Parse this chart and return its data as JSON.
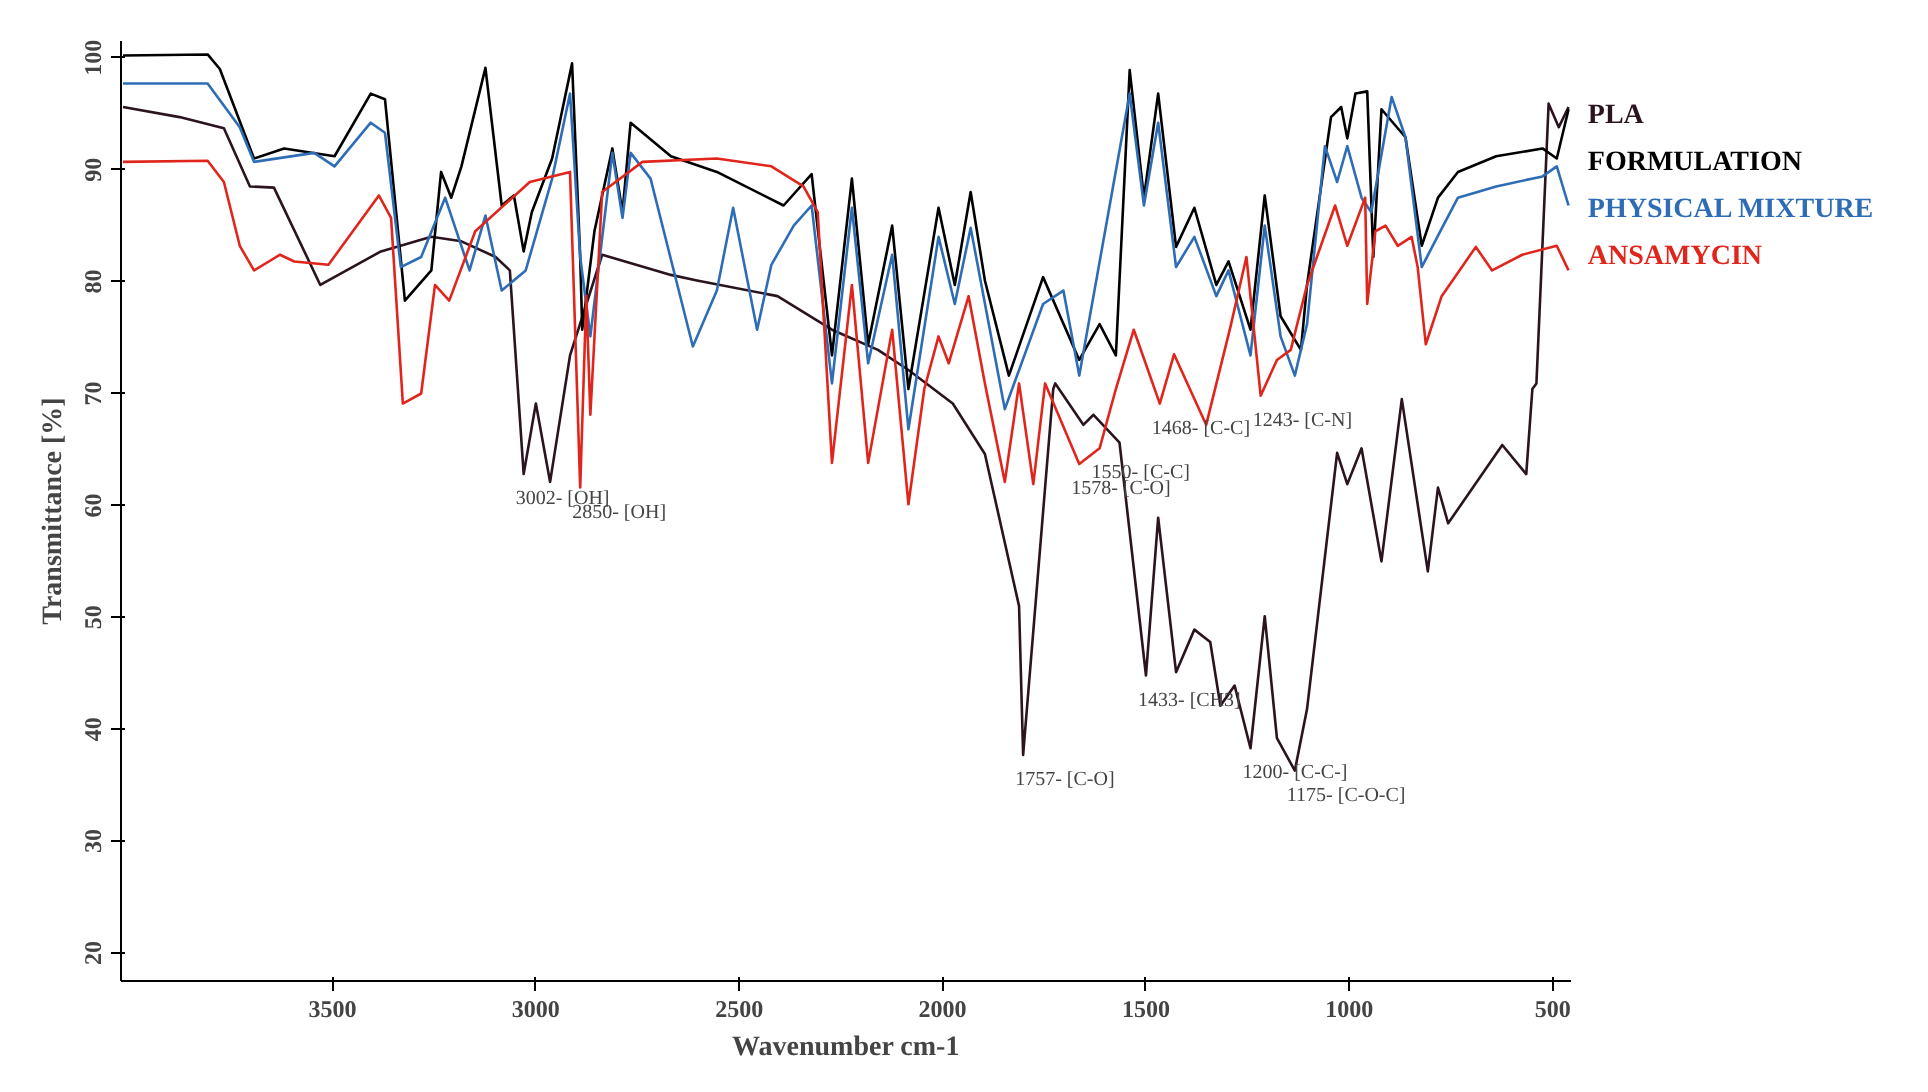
{
  "chart_data": {
    "type": "line",
    "xlabel": "Wavenumber cm-1",
    "ylabel": "Transmittance [%]",
    "xlim": [
      4020,
      455
    ],
    "xticks": [
      3500,
      3000,
      2500,
      2000,
      1500,
      1000,
      500
    ],
    "ylim": [
      17.5,
      101.5
    ],
    "yticks": [
      20,
      30,
      40,
      50,
      60,
      70,
      80,
      90,
      100
    ],
    "grid": false,
    "legend": "right",
    "line_style": "solid",
    "marker": "none",
    "series": [
      {
        "name": "PLA",
        "color": "#2b1320",
        "x": [
          4015,
          3876,
          3767,
          3703,
          3644,
          3530,
          3381,
          3257,
          3183,
          3099,
          3064,
          3030,
          3000,
          2965,
          2916,
          2837,
          2668,
          2604,
          2406,
          2272,
          2159,
          2084,
          1975,
          1896,
          1812,
          1802,
          1748,
          1728,
          1723,
          1654,
          1629,
          1565,
          1500,
          1470,
          1426,
          1381,
          1342,
          1317,
          1282,
          1243,
          1208,
          1178,
          1134,
          1104,
          1030,
          1005,
          970,
          921,
          871,
          807,
          782,
          757,
          624,
          565,
          550,
          540,
          510,
          485,
          461
        ],
        "values": [
          95.6,
          94.7,
          93.7,
          88.5,
          88.4,
          79.7,
          82.7,
          84,
          83.6,
          82.2,
          81,
          62.8,
          69.1,
          62.1,
          73.4,
          82.4,
          80.6,
          80.1,
          78.7,
          75.7,
          73.9,
          72.1,
          69.1,
          64.6,
          51,
          37.7,
          61.6,
          70.4,
          70.9,
          67.2,
          68.1,
          65.6,
          44.8,
          58.9,
          45.1,
          48.9,
          47.8,
          42.1,
          43.9,
          38.3,
          50.1,
          39.2,
          36.3,
          41.8,
          64.7,
          61.9,
          65.1,
          55,
          69.5,
          54.1,
          61.6,
          58.4,
          65.4,
          62.8,
          70.4,
          70.9,
          95.9,
          93.8,
          95.6
        ]
      },
      {
        "name": "FORMULATION",
        "color": "#000000",
        "x": [
          4015,
          3807,
          3777,
          3693,
          3619,
          3495,
          3406,
          3371,
          3322,
          3257,
          3233,
          3208,
          3183,
          3124,
          3084,
          3054,
          3030,
          3010,
          2960,
          2911,
          2891,
          2886,
          2856,
          2812,
          2787,
          2767,
          2668,
          2555,
          2391,
          2322,
          2272,
          2223,
          2183,
          2124,
          2084,
          2010,
          1970,
          1931,
          1896,
          1837,
          1753,
          1664,
          1614,
          1574,
          1540,
          1505,
          1470,
          1426,
          1381,
          1327,
          1297,
          1243,
          1208,
          1169,
          1119,
          1104,
          1045,
          1020,
          1005,
          985,
          956,
          941,
          921,
          862,
          822,
          782,
          733,
          639,
          525,
          490,
          461
        ],
        "values": [
          100.2,
          100.3,
          99,
          91,
          91.9,
          91.2,
          96.8,
          96.3,
          78.3,
          81,
          89.8,
          87.5,
          90.3,
          99.1,
          86.8,
          87.7,
          82.7,
          86.2,
          91,
          99.5,
          82.2,
          75.7,
          84.5,
          91.9,
          86.2,
          94.2,
          91.2,
          89.8,
          86.8,
          89.6,
          73.4,
          89.2,
          74.4,
          85,
          70.4,
          86.6,
          79.7,
          88,
          80.1,
          71.6,
          80.4,
          73,
          76.2,
          73.4,
          98.9,
          87.5,
          96.8,
          83.1,
          86.6,
          79.7,
          81.8,
          75.7,
          87.7,
          76.9,
          73.9,
          79.7,
          94.7,
          95.6,
          92.8,
          96.8,
          97,
          82.2,
          95.4,
          92.9,
          83.2,
          87.5,
          89.8,
          91.2,
          91.9,
          91,
          95.4
        ]
      },
      {
        "name": "PHYSICAL MIXTURE",
        "color": "#2e6db5",
        "x": [
          4015,
          3807,
          3728,
          3693,
          3545,
          3495,
          3406,
          3371,
          3332,
          3282,
          3223,
          3163,
          3124,
          3084,
          3025,
          2960,
          2916,
          2891,
          2866,
          2812,
          2787,
          2767,
          2718,
          2614,
          2555,
          2515,
          2456,
          2421,
          2366,
          2322,
          2272,
          2223,
          2183,
          2124,
          2084,
          2010,
          1970,
          1931,
          1847,
          1753,
          1703,
          1664,
          1540,
          1505,
          1470,
          1426,
          1381,
          1327,
          1297,
          1243,
          1208,
          1169,
          1134,
          1104,
          1060,
          1030,
          1005,
          970,
          946,
          896,
          862,
          822,
          782,
          733,
          639,
          525,
          490,
          461
        ],
        "values": [
          97.7,
          97.7,
          93.8,
          90.7,
          91.5,
          90.3,
          94.2,
          93.3,
          81.3,
          82.2,
          87.5,
          81,
          85.9,
          79.2,
          81,
          89.2,
          96.8,
          82.2,
          75.1,
          91.5,
          85.7,
          91.5,
          89.2,
          74.2,
          79.2,
          86.6,
          75.7,
          81.5,
          85,
          86.8,
          70.9,
          86.6,
          72.7,
          82.4,
          66.8,
          84,
          78,
          84.8,
          68.6,
          78,
          79.2,
          71.6,
          96.8,
          86.8,
          94.2,
          81.3,
          84,
          78.7,
          81,
          73.4,
          85,
          75.1,
          71.6,
          76.2,
          92.1,
          88.9,
          92.1,
          87.5,
          86.2,
          96.5,
          92.9,
          81.3,
          84.1,
          87.5,
          88.5,
          89.4,
          90.3,
          86.8
        ]
      },
      {
        "name": "ANSAMYCIN",
        "color": "#e0261c",
        "x": [
          4015,
          3807,
          3767,
          3728,
          3693,
          3629,
          3594,
          3510,
          3386,
          3356,
          3327,
          3282,
          3248,
          3213,
          3149,
          3015,
          2916,
          2891,
          2876,
          2866,
          2837,
          2738,
          2555,
          2421,
          2342,
          2307,
          2272,
          2223,
          2183,
          2124,
          2084,
          2045,
          2010,
          1985,
          1936,
          1896,
          1847,
          1812,
          1777,
          1748,
          1664,
          1614,
          1574,
          1530,
          1466,
          1431,
          1352,
          1292,
          1253,
          1218,
          1178,
          1144,
          1104,
          1070,
          1035,
          1005,
          961,
          956,
          936,
          911,
          881,
          847,
          832,
          812,
          773,
          689,
          649,
          575,
          490,
          461
        ],
        "values": [
          90.7,
          90.8,
          88.9,
          83.2,
          81,
          82.4,
          81.8,
          81.5,
          87.7,
          85.7,
          69.1,
          70,
          79.7,
          78.3,
          84.5,
          88.9,
          89.8,
          61.6,
          78.7,
          68.1,
          88,
          90.7,
          91,
          90.3,
          88.5,
          86.2,
          63.8,
          79.7,
          63.8,
          75.7,
          60.1,
          70.4,
          75.1,
          72.7,
          78.7,
          70.9,
          62.1,
          70.9,
          61.9,
          70.9,
          63.7,
          65.1,
          70.4,
          75.7,
          69.1,
          73.5,
          67.2,
          76,
          82.2,
          69.8,
          73,
          73.9,
          79.7,
          83.2,
          86.8,
          83.2,
          87.5,
          78,
          84.5,
          85,
          83.2,
          84,
          81.3,
          74.4,
          78.7,
          83.1,
          81,
          82.4,
          83.2,
          81
        ]
      }
    ],
    "annotations": [
      {
        "text": "3002- [OH]",
        "x": 3030,
        "y": 62.8
      },
      {
        "text": "2850- [OH]",
        "x": 2891,
        "y": 61.6
      },
      {
        "text": "1757- [C-O]",
        "x": 1802,
        "y": 37.7
      },
      {
        "text": "1550- [C-C]",
        "x": 1614,
        "y": 65.1
      },
      {
        "text": "1578- [C-O]",
        "x": 1664,
        "y": 63.7
      },
      {
        "text": "1468- [C-C]",
        "x": 1466,
        "y": 69.1
      },
      {
        "text": "1243- [C-N]",
        "x": 1218,
        "y": 69.8
      },
      {
        "text": "1433- [CH3]",
        "x": 1500,
        "y": 44.8
      },
      {
        "text": "1200- [C-C-]",
        "x": 1243,
        "y": 38.3
      },
      {
        "text": "1175- [C-O-C]",
        "x": 1134,
        "y": 36.3
      }
    ]
  }
}
